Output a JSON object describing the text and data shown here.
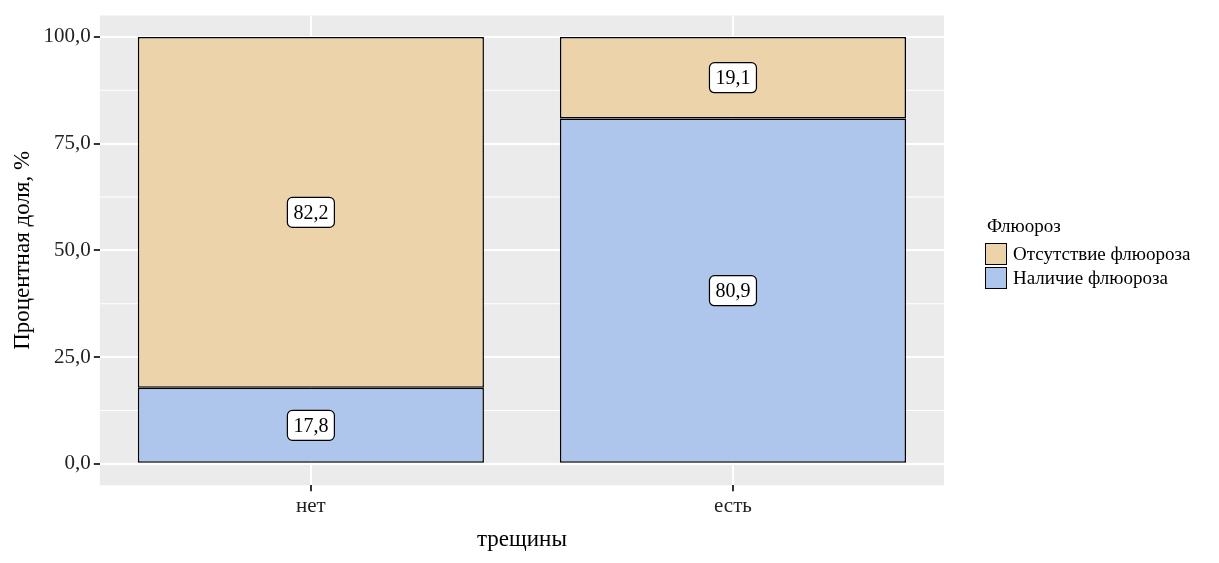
{
  "chart_data": {
    "type": "bar",
    "xlabel": "трещины",
    "ylabel": "Процентная доля, %",
    "legend_title": "Флюороз",
    "categories": [
      "нет",
      "есть"
    ],
    "stacked": true,
    "series": [
      {
        "name": "Наличие флюороза",
        "color": "#aec6ec",
        "values": [
          17.8,
          80.9
        ]
      },
      {
        "name": "Отсутствие флюороза",
        "color": "#ecd3aa",
        "values": [
          82.2,
          19.1
        ]
      }
    ],
    "ylim": [
      -5,
      105
    ],
    "yticks": [
      {
        "value": 0,
        "label": "0,0"
      },
      {
        "value": 25,
        "label": "25,0"
      },
      {
        "value": 50,
        "label": "50,0"
      },
      {
        "value": 75,
        "label": "75,0"
      },
      {
        "value": 100,
        "label": "100,0"
      }
    ],
    "value_labels": [
      [
        "17,8",
        "80,9"
      ],
      [
        "82,2",
        "19,1"
      ]
    ],
    "grid": true,
    "legend": "right"
  }
}
